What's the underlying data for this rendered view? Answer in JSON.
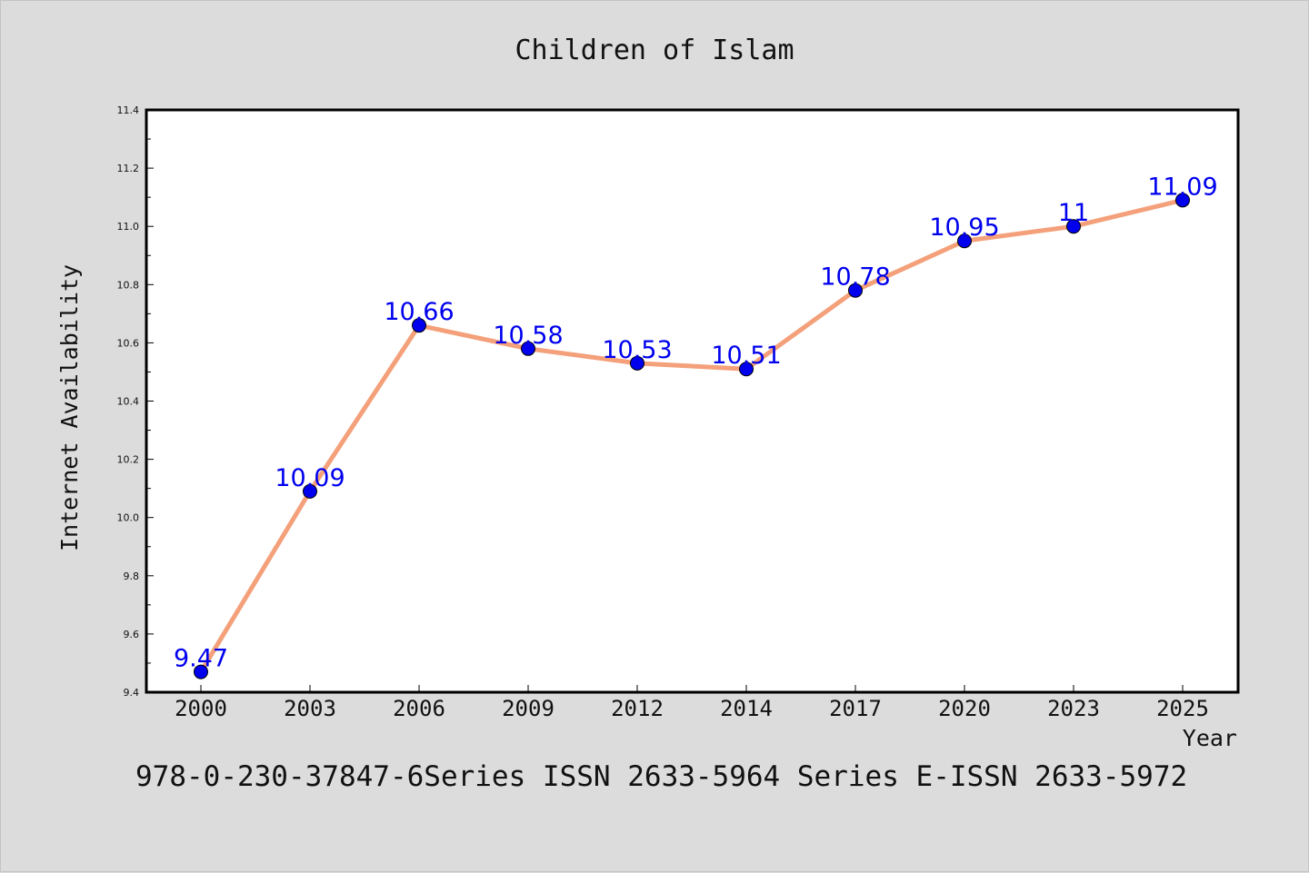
{
  "chart_data": {
    "type": "line",
    "title": "Children of Islam",
    "xlabel": "Year",
    "ylabel": "Internet Availability",
    "caption": "978-0-230-37847-6Series ISSN 2633-5964 Series E-ISSN 2633-5972",
    "categories": [
      "2000",
      "2003",
      "2006",
      "2009",
      "2012",
      "2014",
      "2017",
      "2020",
      "2023",
      "2025"
    ],
    "values": [
      9.47,
      10.09,
      10.66,
      10.58,
      10.53,
      10.51,
      10.78,
      10.95,
      11,
      11.09
    ],
    "data_labels": [
      "9.47",
      "10.09",
      "10.66",
      "10.58",
      "10.53",
      "10.51",
      "10.78",
      "10.95",
      "11",
      "11.09"
    ],
    "ylim": [
      9.4,
      11.4
    ],
    "yticks": [
      "9.4",
      "9.6",
      "9.8",
      "10.0",
      "10.2",
      "10.4",
      "10.6",
      "10.8",
      "11.0",
      "11.2",
      "11.4"
    ],
    "grid": false,
    "colors": {
      "line": "#f4a07a",
      "marker": "#0000ee",
      "label": "#0000ee",
      "background": "#dcdcdc",
      "plot_background": "#ffffff"
    }
  }
}
